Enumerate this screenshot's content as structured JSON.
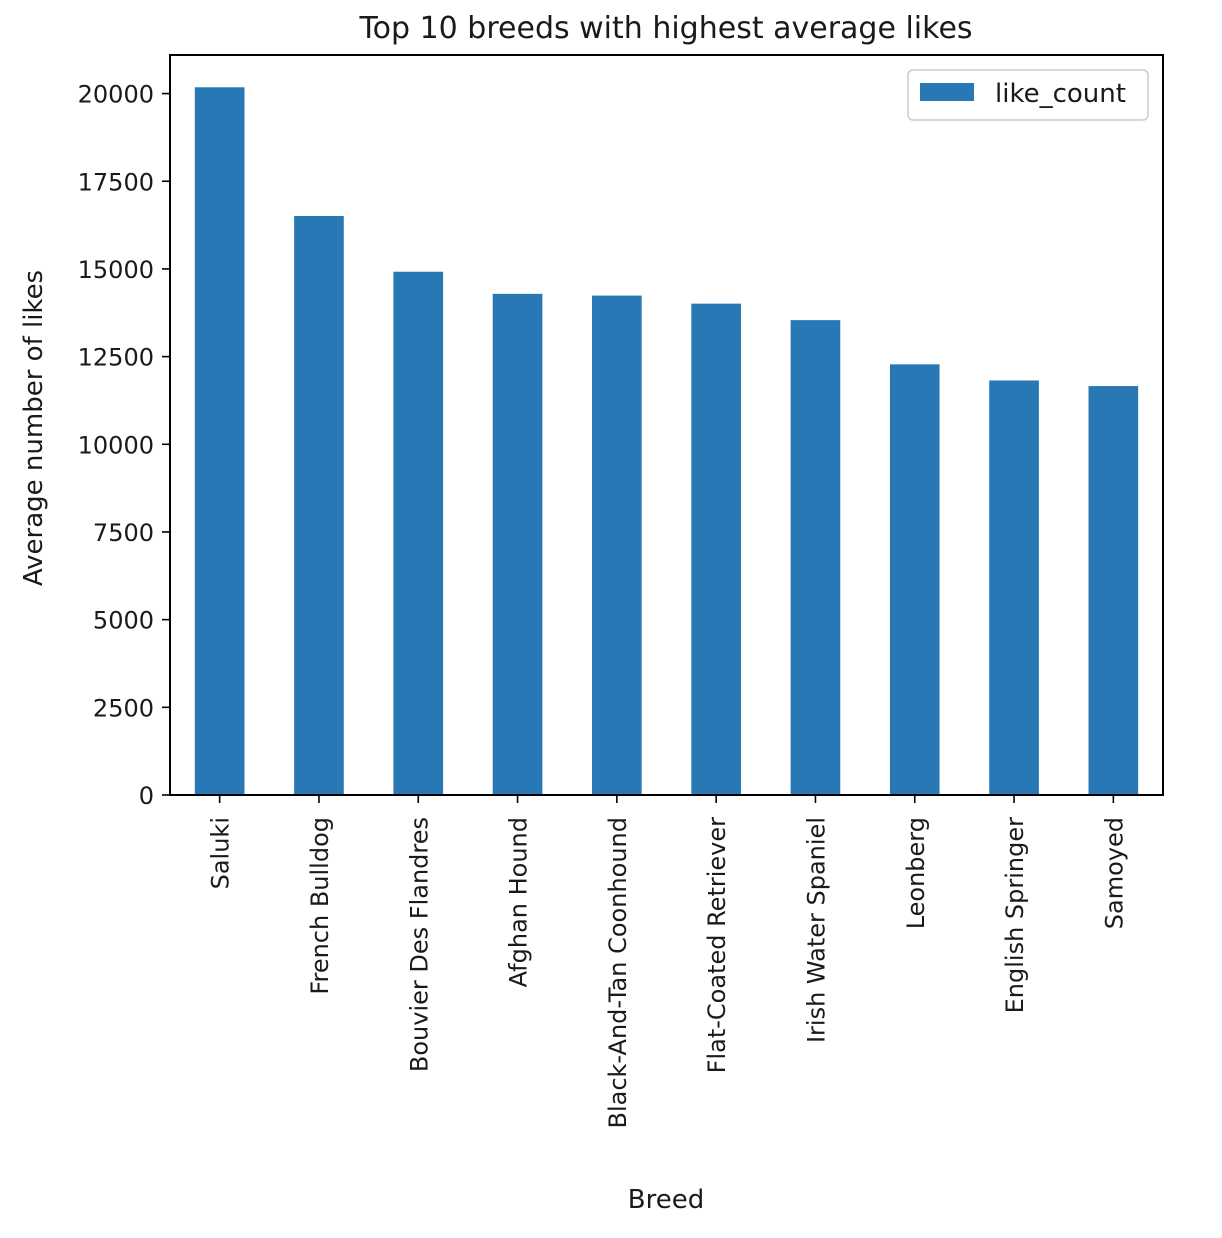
{
  "chart_data": {
    "type": "bar",
    "title": "Top 10 breeds with highest average likes",
    "xlabel": "Breed",
    "ylabel": "Average number of likes",
    "categories": [
      "Saluki",
      "French Bulldog",
      "Bouvier Des Flandres",
      "Afghan Hound",
      "Black-And-Tan Coonhound",
      "Flat-Coated Retriever",
      "Irish Water Spaniel",
      "Leonberg",
      "English Springer",
      "Samoyed"
    ],
    "series": [
      {
        "name": "like_count",
        "values": [
          20180,
          16510,
          14920,
          14290,
          14240,
          14010,
          13540,
          12280,
          11820,
          11660
        ],
        "color": "#2878b5"
      }
    ],
    "ylim": [
      0,
      21100
    ],
    "yticks": [
      0,
      2500,
      5000,
      7500,
      10000,
      12500,
      15000,
      17500,
      20000
    ],
    "grid": false,
    "legend": "top-right"
  }
}
